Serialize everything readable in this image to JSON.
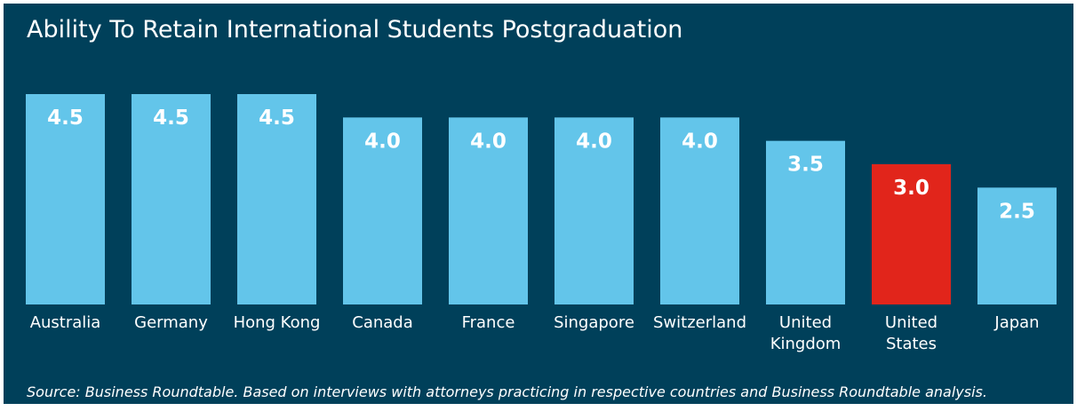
{
  "chart_data": {
    "type": "bar",
    "title": "Ability To Retain International Students Postgraduation",
    "categories": [
      "Australia",
      "Germany",
      "Hong Kong",
      "Canada",
      "France",
      "Singapore",
      "Switzerland",
      "United Kingdom",
      "United States",
      "Japan"
    ],
    "values": [
      4.5,
      4.5,
      4.5,
      4.0,
      4.0,
      4.0,
      4.0,
      3.5,
      3.0,
      2.5
    ],
    "value_labels": [
      "4.5",
      "4.5",
      "4.5",
      "4.0",
      "4.0",
      "4.0",
      "4.0",
      "3.5",
      "3.0",
      "2.5"
    ],
    "colors": [
      "#63c5ea",
      "#63c5ea",
      "#63c5ea",
      "#63c5ea",
      "#63c5ea",
      "#63c5ea",
      "#63c5ea",
      "#63c5ea",
      "#e1251b",
      "#63c5ea"
    ],
    "ylim": [
      0,
      4.5
    ],
    "source": "Source: Business Roundtable. Based on interviews with attorneys practicing in respective countries and Business Roundtable analysis."
  }
}
